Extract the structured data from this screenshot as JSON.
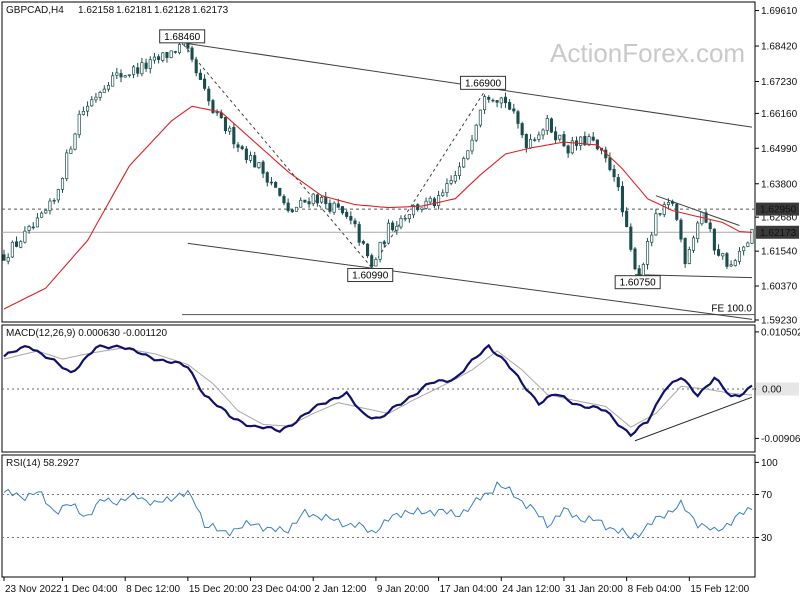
{
  "chart_data": [
    {
      "type": "candlestick",
      "symbol_timeframe": "GBPCAD,H4",
      "ohlc": [
        "1.62158",
        "1.62181",
        "1.62128",
        "1.62173"
      ],
      "watermark": "ActionForex.com",
      "ylim": [
        1.5923,
        1.6983
      ],
      "y_ticks": [
        "1.69610",
        "1.68420",
        "1.67230",
        "1.66160",
        "1.64990",
        "1.63800",
        "1.62680",
        "1.61540",
        "1.60370",
        "1.59230"
      ],
      "y_tick_values": [
        1.6961,
        1.6842,
        1.6723,
        1.6616,
        1.6499,
        1.638,
        1.6268,
        1.6154,
        1.6037,
        1.5923
      ],
      "price_labels": [
        {
          "text": "1.62950",
          "value": 1.6295,
          "style": "dark"
        },
        {
          "text": "1.62173",
          "value": 1.62173,
          "style": "dark"
        }
      ],
      "annotations": [
        {
          "text": "1.68460",
          "value": 1.6846,
          "bar": 43
        },
        {
          "text": "1.66900",
          "value": 1.669,
          "bar": 115
        },
        {
          "text": "1.60990",
          "value": 1.6099,
          "bar": 88
        },
        {
          "text": "1.60750",
          "value": 1.6075,
          "bar": 152
        },
        {
          "text": "FE 100.0",
          "value": 1.5941,
          "bar": 178
        }
      ],
      "levels": [
        {
          "name": "resistance",
          "value": 1.6295,
          "style": "dotted"
        },
        {
          "name": "current",
          "value": 1.62173,
          "style": "solid"
        },
        {
          "name": "fe100",
          "value": 1.5941,
          "style": "solid"
        }
      ],
      "series": [
        {
          "name": "candles",
          "close_path": [
            [
              0,
              1.614
            ],
            [
              8,
              1.6245
            ],
            [
              12,
              1.632
            ],
            [
              18,
              1.661
            ],
            [
              25,
              1.673
            ],
            [
              35,
              1.678
            ],
            [
              43,
              1.6846
            ],
            [
              50,
              1.662
            ],
            [
              58,
              1.648
            ],
            [
              64,
              1.639
            ],
            [
              68,
              1.628
            ],
            [
              74,
              1.634
            ],
            [
              80,
              1.629
            ],
            [
              84,
              1.623
            ],
            [
              88,
              1.6099
            ],
            [
              92,
              1.623
            ],
            [
              98,
              1.63
            ],
            [
              104,
              1.632
            ],
            [
              110,
              1.645
            ],
            [
              115,
              1.669
            ],
            [
              120,
              1.666
            ],
            [
              125,
              1.652
            ],
            [
              130,
              1.658
            ],
            [
              135,
              1.65
            ],
            [
              140,
              1.653
            ],
            [
              146,
              1.642
            ],
            [
              150,
              1.615
            ],
            [
              152,
              1.6075
            ],
            [
              156,
              1.626
            ],
            [
              160,
              1.632
            ],
            [
              163,
              1.613
            ],
            [
              167,
              1.629
            ],
            [
              170,
              1.617
            ],
            [
              174,
              1.61
            ],
            [
              177,
              1.616
            ],
            [
              179,
              1.6217
            ]
          ]
        },
        {
          "name": "moving-average",
          "points": [
            [
              0,
              1.596
            ],
            [
              10,
              1.603
            ],
            [
              20,
              1.619
            ],
            [
              30,
              1.644
            ],
            [
              40,
              1.659
            ],
            [
              45,
              1.664
            ],
            [
              52,
              1.662
            ],
            [
              60,
              1.652
            ],
            [
              68,
              1.642
            ],
            [
              76,
              1.634
            ],
            [
              84,
              1.631
            ],
            [
              92,
              1.63
            ],
            [
              100,
              1.6305
            ],
            [
              108,
              1.633
            ],
            [
              114,
              1.641
            ],
            [
              120,
              1.648
            ],
            [
              126,
              1.65
            ],
            [
              134,
              1.652
            ],
            [
              142,
              1.651
            ],
            [
              148,
              1.643
            ],
            [
              154,
              1.633
            ],
            [
              160,
              1.629
            ],
            [
              166,
              1.627
            ],
            [
              172,
              1.625
            ],
            [
              176,
              1.622
            ],
            [
              179,
              1.6217
            ]
          ]
        }
      ],
      "trendlines": [
        {
          "name": "upper-channel",
          "from": [
            44,
            1.685
          ],
          "to": [
            179,
            1.657
          ]
        },
        {
          "name": "lower-channel",
          "from": [
            44,
            1.618
          ],
          "to": [
            179,
            1.5925
          ]
        },
        {
          "name": "fib-dashed",
          "from": [
            43,
            1.6846
          ],
          "to": [
            88,
            1.6099
          ]
        },
        {
          "name": "fib-dashed",
          "from": [
            88,
            1.6099
          ],
          "to": [
            115,
            1.669
          ]
        },
        {
          "name": "triangle-upper",
          "from": [
            156,
            1.634
          ],
          "to": [
            176,
            1.624
          ]
        },
        {
          "name": "triangle-lower",
          "from": [
            151,
            1.6075
          ],
          "to": [
            179,
            1.6065
          ]
        }
      ]
    },
    {
      "type": "line",
      "label": "MACD(12,26,9) 0.000630 -0.001120",
      "ylim": [
        -0.0112,
        0.0114
      ],
      "y_ticks": [
        "0.010502",
        "0.00",
        "-0.009068"
      ],
      "y_tick_values": [
        0.010502,
        0.0,
        -0.009068
      ],
      "price_labels": [
        {
          "text": "0.00",
          "value": 0.0,
          "style": "light"
        }
      ],
      "zero_line": true,
      "series": [
        {
          "name": "MACD",
          "points": [
            [
              0,
              0.006
            ],
            [
              6,
              0.008
            ],
            [
              12,
              0.005
            ],
            [
              16,
              0.003
            ],
            [
              22,
              0.0075
            ],
            [
              28,
              0.008
            ],
            [
              34,
              0.006
            ],
            [
              40,
              0.005
            ],
            [
              44,
              0.004
            ],
            [
              48,
              -0.001
            ],
            [
              54,
              -0.005
            ],
            [
              60,
              -0.007
            ],
            [
              66,
              -0.0075
            ],
            [
              70,
              -0.006
            ],
            [
              76,
              -0.0025
            ],
            [
              82,
              -0.001
            ],
            [
              86,
              -0.0045
            ],
            [
              90,
              -0.0055
            ],
            [
              96,
              -0.002
            ],
            [
              102,
              0.001
            ],
            [
              108,
              0.002
            ],
            [
              112,
              0.005
            ],
            [
              116,
              0.008
            ],
            [
              120,
              0.005
            ],
            [
              124,
              0.001
            ],
            [
              128,
              -0.0025
            ],
            [
              132,
              -0.001
            ],
            [
              138,
              -0.003
            ],
            [
              144,
              -0.004
            ],
            [
              150,
              -0.0085
            ],
            [
              154,
              -0.006
            ],
            [
              158,
              0.0
            ],
            [
              162,
              0.002
            ],
            [
              166,
              -0.001
            ],
            [
              170,
              0.002
            ],
            [
              174,
              -0.0015
            ],
            [
              176,
              -0.001
            ],
            [
              179,
              0.0006
            ]
          ]
        },
        {
          "name": "signal",
          "points": [
            [
              0,
              0.0055
            ],
            [
              8,
              0.007
            ],
            [
              14,
              0.0055
            ],
            [
              20,
              0.0065
            ],
            [
              28,
              0.0075
            ],
            [
              36,
              0.0065
            ],
            [
              44,
              0.0045
            ],
            [
              50,
              0.001
            ],
            [
              56,
              -0.004
            ],
            [
              62,
              -0.0065
            ],
            [
              68,
              -0.0068
            ],
            [
              74,
              -0.0045
            ],
            [
              80,
              -0.0025
            ],
            [
              86,
              -0.0035
            ],
            [
              92,
              -0.0045
            ],
            [
              98,
              -0.002
            ],
            [
              106,
              0.001
            ],
            [
              112,
              0.0035
            ],
            [
              118,
              0.007
            ],
            [
              124,
              0.0035
            ],
            [
              130,
              -0.001
            ],
            [
              136,
              -0.002
            ],
            [
              144,
              -0.0032
            ],
            [
              150,
              -0.007
            ],
            [
              156,
              -0.0045
            ],
            [
              162,
              0.0005
            ],
            [
              168,
              0.0
            ],
            [
              174,
              -0.0008
            ],
            [
              179,
              -0.0011
            ]
          ]
        }
      ],
      "trendlines": [
        {
          "name": "macd-support",
          "from": [
            151,
            -0.0095
          ],
          "to": [
            179,
            -0.0015
          ]
        }
      ]
    },
    {
      "type": "line",
      "label": "RSI(14) 58.2927",
      "ylim": [
        0,
        100
      ],
      "y_ticks": [
        "100",
        "70",
        "30"
      ],
      "y_tick_values": [
        100,
        70,
        30
      ],
      "levels": [
        70,
        30
      ],
      "series": [
        {
          "name": "RSI",
          "points": [
            [
              0,
              72
            ],
            [
              4,
              68
            ],
            [
              8,
              72
            ],
            [
              12,
              55
            ],
            [
              16,
              60
            ],
            [
              20,
              50
            ],
            [
              24,
              66
            ],
            [
              28,
              63
            ],
            [
              32,
              70
            ],
            [
              36,
              60
            ],
            [
              40,
              68
            ],
            [
              44,
              70
            ],
            [
              46,
              62
            ],
            [
              48,
              42
            ],
            [
              52,
              35
            ],
            [
              56,
              38
            ],
            [
              60,
              44
            ],
            [
              64,
              36
            ],
            [
              68,
              38
            ],
            [
              72,
              52
            ],
            [
              76,
              50
            ],
            [
              80,
              44
            ],
            [
              84,
              42
            ],
            [
              88,
              35
            ],
            [
              92,
              46
            ],
            [
              96,
              55
            ],
            [
              100,
              52
            ],
            [
              104,
              56
            ],
            [
              108,
              50
            ],
            [
              112,
              60
            ],
            [
              116,
              72
            ],
            [
              118,
              80
            ],
            [
              122,
              70
            ],
            [
              126,
              58
            ],
            [
              130,
              42
            ],
            [
              134,
              55
            ],
            [
              138,
              48
            ],
            [
              142,
              45
            ],
            [
              146,
              38
            ],
            [
              150,
              30
            ],
            [
              154,
              40
            ],
            [
              158,
              52
            ],
            [
              162,
              60
            ],
            [
              166,
              44
            ],
            [
              170,
              35
            ],
            [
              174,
              45
            ],
            [
              176,
              50
            ],
            [
              179,
              58
            ]
          ]
        }
      ]
    }
  ],
  "x_axis": {
    "bars": 180,
    "labels": [
      {
        "text": "23 Nov 2022",
        "bar": 0
      },
      {
        "text": "1 Dec 04:00",
        "bar": 14
      },
      {
        "text": "8 Dec 12:00",
        "bar": 29
      },
      {
        "text": "15 Dec 20:00",
        "bar": 44
      },
      {
        "text": "23 Dec 04:00",
        "bar": 59
      },
      {
        "text": "2 Jan 12:00",
        "bar": 74
      },
      {
        "text": "9 Jan 20:00",
        "bar": 89
      },
      {
        "text": "17 Jan 04:00",
        "bar": 104
      },
      {
        "text": "24 Jan 12:00",
        "bar": 119
      },
      {
        "text": "31 Jan 20:00",
        "bar": 134
      },
      {
        "text": "8 Feb 04:00",
        "bar": 149
      },
      {
        "text": "15 Feb 12:00",
        "bar": 164
      }
    ]
  },
  "colors": {
    "candles": "#1a4d4d",
    "moving_average": "#e02020",
    "macd": "#10106e",
    "signal": "#a8a8a8",
    "rsi": "#3a7ec8",
    "grid": "#b8b8b8",
    "trend": "#404040",
    "watermark": "#c9c9c9"
  }
}
